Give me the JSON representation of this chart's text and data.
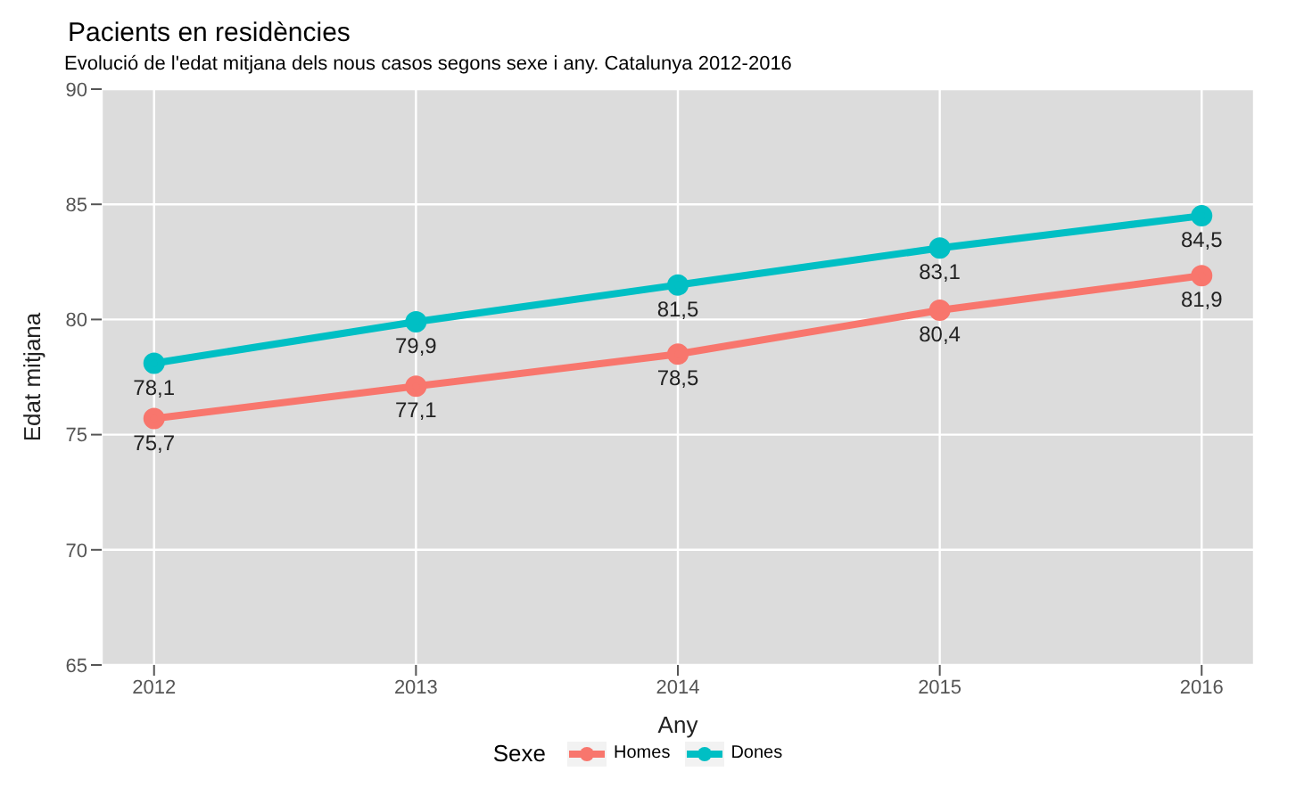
{
  "chart_data": {
    "type": "line",
    "title": "Pacients en residències",
    "subtitle": "Evolució de l'edat mitjana dels nous casos segons sexe i any. Catalunya 2012-2016",
    "xlabel": "Any",
    "ylabel": "Edat mitjana",
    "legend_title": "Sexe",
    "x": [
      2012,
      2013,
      2014,
      2015,
      2016
    ],
    "xlim": [
      2011.8,
      2016.2
    ],
    "xticks": [
      2012,
      2013,
      2014,
      2015,
      2016
    ],
    "ylim": [
      65,
      90
    ],
    "yticks": [
      65,
      70,
      75,
      80,
      85,
      90
    ],
    "grid": true,
    "legend": "bottom",
    "marker": "circle",
    "line_style": "solid",
    "series": [
      {
        "name": "Homes",
        "color": "#f8766d",
        "values": [
          75.7,
          77.1,
          78.5,
          80.4,
          81.9
        ],
        "value_labels": [
          "75,7",
          "77,1",
          "78,5",
          "80,4",
          "81,9"
        ]
      },
      {
        "name": "Dones",
        "color": "#00bfc4",
        "values": [
          78.1,
          79.9,
          81.5,
          83.1,
          84.5
        ],
        "value_labels": [
          "78,1",
          "79,9",
          "81,5",
          "83,1",
          "84,5"
        ]
      }
    ]
  }
}
